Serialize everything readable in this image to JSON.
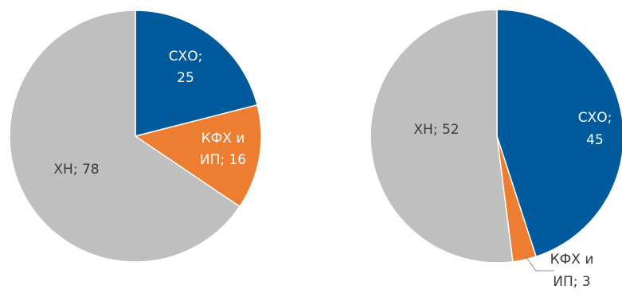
{
  "chart_data": [
    {
      "type": "pie",
      "slices": [
        {
          "label": "СХО",
          "value": 25,
          "color": "#005a9c",
          "label_lines": [
            "СХО;",
            "25"
          ],
          "label_color": "#ffffff"
        },
        {
          "label": "КФХ и ИП",
          "value": 16,
          "color": "#ed7d31",
          "label_lines": [
            "КФХ и",
            "ИП; 16"
          ],
          "label_color": "#ffffff"
        },
        {
          "label": "ХН",
          "value": 78,
          "color": "#bfbfbf",
          "label_lines": [
            "ХН; 78"
          ],
          "label_color": "#3a3a3a"
        }
      ]
    },
    {
      "type": "pie",
      "slices": [
        {
          "label": "СХО",
          "value": 45,
          "color": "#005a9c",
          "label_lines": [
            "СХО;",
            "45"
          ],
          "label_color": "#ffffff"
        },
        {
          "label": "КФХ и ИП",
          "value": 3,
          "color": "#ed7d31",
          "label_lines": [
            "КФХ и",
            "ИП; 3"
          ],
          "label_color": "#3a3a3a"
        },
        {
          "label": "ХН",
          "value": 52,
          "color": "#bfbfbf",
          "label_lines": [
            "ХН; 52"
          ],
          "label_color": "#3a3a3a"
        }
      ]
    }
  ]
}
